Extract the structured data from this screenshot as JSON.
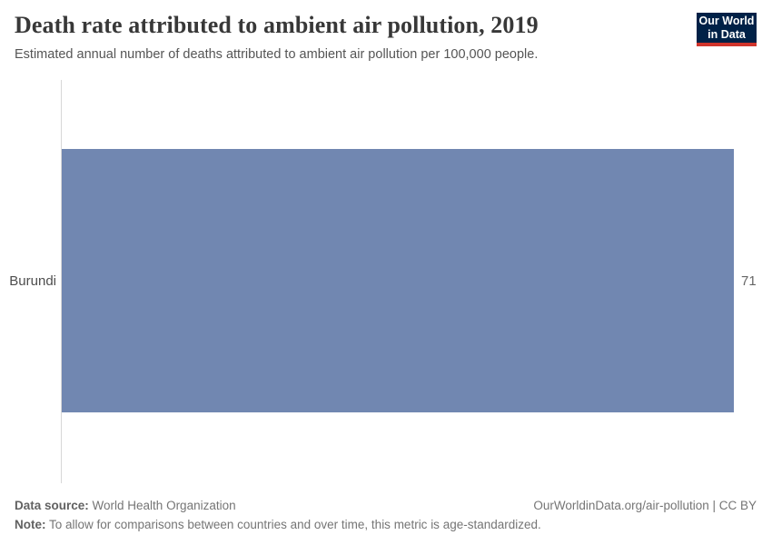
{
  "header": {
    "title": "Death rate attributed to ambient air pollution, 2019",
    "subtitle": "Estimated annual number of deaths attributed to ambient air pollution per 100,000 people."
  },
  "logo": {
    "line1": "Our World",
    "line2": "in Data",
    "bg_color": "#002147",
    "accent_color": "#d0342c"
  },
  "chart_data": {
    "type": "bar",
    "orientation": "horizontal",
    "title": "Death rate attributed to ambient air pollution, 2019",
    "subtitle": "Estimated annual number of deaths attributed to ambient air pollution per 100,000 people.",
    "categories": [
      "Burundi"
    ],
    "values": [
      71
    ],
    "value_labels": [
      "71"
    ],
    "xlabel": "",
    "ylabel": "",
    "xlim": [
      0,
      71
    ],
    "grid": false,
    "legend": "none",
    "bar_color": "#7187b1",
    "axis_line_color": "#d7d7d7"
  },
  "footer": {
    "data_source_label": "Data source:",
    "data_source_value": " World Health Organization",
    "note_label": "Note:",
    "note_value": " To allow for comparisons between countries and over time, this metric is age-standardized.",
    "rights": "OurWorldinData.org/air-pollution | CC BY"
  }
}
